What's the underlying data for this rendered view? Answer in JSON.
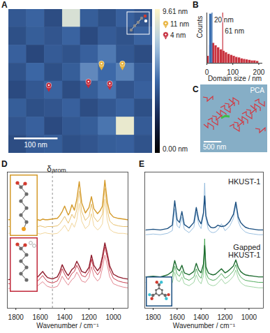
{
  "chart_data": [
    {
      "panel": "A",
      "type": "heatmap",
      "tick_labels": false,
      "xlim": [
        0,
        330
      ],
      "ylim": [
        0,
        320
      ],
      "heights": [
        [
          4.2,
          4.6,
          3.8,
          8.5,
          4.4,
          3.9,
          4.5,
          4.1
        ],
        [
          3.9,
          4.4,
          4.1,
          4.6,
          3.7,
          4.3,
          4.0,
          4.6
        ],
        [
          4.5,
          3.6,
          4.3,
          4.0,
          4.5,
          5.2,
          4.2,
          3.8
        ],
        [
          4.0,
          4.7,
          3.9,
          4.4,
          5.6,
          4.8,
          5.4,
          4.3
        ],
        [
          3.7,
          4.2,
          4.6,
          3.8,
          4.4,
          5.0,
          4.1,
          4.5
        ],
        [
          4.4,
          3.9,
          4.1,
          4.5,
          3.8,
          4.2,
          4.6,
          3.9
        ],
        [
          4.1,
          4.5,
          3.7,
          4.2,
          4.4,
          5.1,
          9.0,
          4.3
        ],
        [
          3.8,
          4.3,
          4.4,
          3.9,
          4.1,
          4.4,
          4.5,
          4.0
        ]
      ],
      "colorbar": {
        "range": [
          0,
          9.61
        ],
        "ticks": [
          {
            "value": 9.61,
            "label": "9.61 nm"
          },
          {
            "value": 0,
            "label": "0.00 nm"
          }
        ]
      },
      "scale_bar": {
        "length": 100,
        "label": "100 nm"
      },
      "markers": [
        {
          "name": "11 nm",
          "color": "#e8b23a",
          "x": [
            213,
            261
          ],
          "y": [
            133,
            133
          ]
        },
        {
          "name": "4 nm",
          "color": "#c42a3a",
          "x": [
            232,
            183,
            92
          ],
          "y": [
            177,
            173,
            181
          ]
        }
      ]
    },
    {
      "panel": "B",
      "type": "histogram",
      "tick_labels": "x",
      "xlabel": "Domain size / nm",
      "ylabel": "Counts",
      "xlim": [
        0,
        215
      ],
      "xticks": [
        0,
        100,
        200
      ],
      "ylim": [
        0,
        100
      ],
      "yticks": [],
      "series": [
        {
          "color": "#c8323e",
          "bins": [
            0,
            10,
            20,
            30,
            40,
            50,
            60,
            70,
            80,
            90,
            100,
            110,
            120,
            130,
            140,
            150,
            160,
            170,
            180,
            190,
            200
          ],
          "values": [
            14,
            36,
            40,
            35,
            31,
            27,
            24,
            21,
            18,
            16,
            14,
            12,
            11,
            9,
            8,
            7,
            6,
            5,
            5,
            4
          ]
        },
        {
          "color": "#3b6fb0",
          "bins": [
            10,
            20
          ],
          "values": [
            98
          ]
        }
      ],
      "annotations": [
        {
          "x": 20,
          "text": "20 nm",
          "color": "#3b6fb0"
        },
        {
          "x": 61,
          "text": "61 nm",
          "color": "#c8323e"
        }
      ]
    },
    {
      "panel": "C",
      "type": "image",
      "tick_labels": false,
      "title": "PCA",
      "xlim": [
        0,
        1900
      ],
      "scale_bar": {
        "length": 500,
        "label": "500 nm"
      }
    },
    {
      "panel": "D",
      "type": "line",
      "tick_labels": "x",
      "xlabel": "Wavenumber / cm⁻¹",
      "xlim": [
        1870,
        880
      ],
      "xticks": [
        1800,
        1600,
        1400,
        1200,
        1000
      ],
      "ylim": [
        0,
        20
      ],
      "yticks": [],
      "x": [
        1860,
        1800,
        1740,
        1680,
        1640,
        1620,
        1600,
        1580,
        1560,
        1540,
        1500,
        1460,
        1440,
        1420,
        1400,
        1380,
        1370,
        1360,
        1340,
        1320,
        1300,
        1280,
        1260,
        1230,
        1200,
        1180,
        1160,
        1130,
        1110,
        1090,
        1070,
        1050,
        1030,
        1000,
        960,
        920,
        885
      ],
      "groups": [
        {
          "series": [
            {
              "color": "#d49a2a",
              "values": [
                13.0,
                13.1,
                12.9,
                13.0,
                13.1,
                13.0,
                12.9,
                13.1,
                13.0,
                13.0,
                13.1,
                13.2,
                13.6,
                14.2,
                15.0,
                14.1,
                13.7,
                14.0,
                15.2,
                14.4,
                16.0,
                18.6,
                15.5,
                14.0,
                14.8,
                16.4,
                14.6,
                13.9,
                14.3,
                15.0,
                18.8,
                15.6,
                14.0,
                13.4,
                13.2,
                13.1,
                13.0
              ]
            },
            {
              "color": "#e4b95e",
              "values": [
                12.0,
                11.9,
                12.1,
                12.0,
                11.9,
                12.0,
                12.1,
                12.0,
                11.9,
                12.0,
                12.0,
                12.1,
                12.4,
                12.9,
                13.5,
                12.8,
                12.5,
                12.9,
                13.8,
                13.2,
                14.5,
                17.2,
                14.2,
                12.9,
                13.5,
                15.3,
                13.4,
                12.7,
                13.1,
                13.8,
                17.6,
                14.4,
                12.8,
                12.3,
                12.1,
                12.0,
                12.0
              ]
            },
            {
              "color": "#efd08e",
              "values": [
                11.0,
                11.1,
                10.9,
                11.0,
                11.1,
                11.0,
                10.9,
                11.0,
                11.1,
                11.0,
                10.9,
                11.0,
                11.3,
                11.7,
                12.2,
                11.6,
                11.3,
                11.6,
                12.5,
                11.9,
                13.0,
                15.4,
                12.8,
                11.7,
                12.2,
                13.9,
                12.1,
                11.5,
                11.8,
                12.4,
                16.0,
                12.9,
                11.6,
                11.2,
                11.0,
                11.0,
                10.9
              ]
            }
          ]
        },
        {
          "series": [
            {
              "color": "#8e1a2b",
              "values": [
                4.2,
                4.3,
                4.1,
                4.3,
                4.4,
                4.6,
                5.0,
                5.4,
                4.9,
                4.5,
                4.3,
                4.6,
                5.3,
                6.4,
                5.6,
                5.0,
                4.8,
                5.1,
                5.7,
                6.0,
                6.9,
                6.2,
                5.4,
                5.2,
                6.0,
                7.8,
                6.3,
                5.5,
                6.0,
                7.6,
                9.6,
                8.0,
                6.2,
                5.0,
                4.6,
                4.4,
                4.3
              ]
            },
            {
              "color": "#c0283a",
              "values": [
                3.6,
                3.5,
                3.7,
                3.6,
                3.8,
                4.0,
                4.4,
                4.8,
                4.3,
                3.9,
                3.7,
                4.0,
                4.7,
                5.8,
                5.0,
                4.4,
                4.2,
                4.5,
                5.1,
                5.4,
                6.3,
                5.6,
                4.8,
                4.6,
                5.4,
                7.2,
                5.7,
                4.9,
                5.4,
                7.0,
                9.0,
                7.4,
                5.6,
                4.4,
                4.0,
                3.8,
                3.7
              ]
            },
            {
              "color": "#e07a86",
              "values": [
                2.9,
                3.0,
                2.9,
                3.0,
                3.1,
                3.3,
                3.6,
                3.9,
                3.5,
                3.2,
                3.0,
                3.2,
                3.8,
                4.7,
                4.1,
                3.6,
                3.4,
                3.7,
                4.2,
                4.5,
                5.3,
                4.7,
                4.0,
                3.8,
                4.5,
                6.1,
                4.7,
                4.0,
                4.4,
                5.9,
                7.8,
                6.3,
                4.6,
                3.6,
                3.3,
                3.1,
                3.0
              ]
            }
          ]
        }
      ],
      "annotations": [
        {
          "x": 1500,
          "text": "δ",
          "sub": "arom.",
          "line_style": "dashed"
        }
      ]
    },
    {
      "panel": "E",
      "type": "line",
      "tick_labels": "x",
      "xlabel": "Wavenumber / cm⁻¹",
      "xlim": [
        1870,
        880
      ],
      "xticks": [
        1800,
        1600,
        1400,
        1200,
        1000
      ],
      "ylim": [
        0,
        20
      ],
      "yticks": [],
      "x": [
        1860,
        1800,
        1740,
        1680,
        1640,
        1620,
        1600,
        1580,
        1560,
        1540,
        1500,
        1460,
        1440,
        1420,
        1400,
        1380,
        1370,
        1360,
        1340,
        1320,
        1300,
        1280,
        1260,
        1230,
        1200,
        1180,
        1160,
        1130,
        1110,
        1090,
        1070,
        1050,
        1030,
        1000,
        960,
        920,
        885
      ],
      "groups": [
        {
          "label": "HKUST-1",
          "series": [
            {
              "color": "#1b4f80",
              "values": [
                11.5,
                11.6,
                11.5,
                11.7,
                12.2,
                15.8,
                13.0,
                12.6,
                14.2,
                12.3,
                11.8,
                12.6,
                14.8,
                13.0,
                12.4,
                14.0,
                16.5,
                13.6,
                12.3,
                11.9,
                11.8,
                11.9,
                12.2,
                12.0,
                12.1,
                12.4,
                12.8,
                13.8,
                15.6,
                13.4,
                12.6,
                12.2,
                11.9,
                11.7,
                11.6,
                11.5,
                11.5
              ]
            },
            {
              "color": "#8fb8db",
              "values": [
                10.8,
                10.9,
                10.8,
                11.0,
                11.4,
                14.6,
                12.1,
                11.8,
                13.4,
                11.6,
                11.1,
                11.9,
                14.2,
                12.3,
                11.7,
                13.8,
                18.4,
                13.2,
                11.6,
                11.2,
                11.1,
                11.2,
                11.5,
                12.4,
                11.4,
                11.7,
                12.1,
                13.2,
                15.2,
                12.8,
                11.9,
                11.5,
                11.2,
                11.0,
                10.9,
                10.8,
                10.8
              ]
            }
          ]
        },
        {
          "label": "Gapped HKUST-1",
          "series": [
            {
              "color": "#1d6b2f",
              "values": [
                4.6,
                4.7,
                4.6,
                4.9,
                5.4,
                7.0,
                5.8,
                5.5,
                6.3,
                5.2,
                4.9,
                5.4,
                6.6,
                5.6,
                5.2,
                6.5,
                9.2,
                6.1,
                5.2,
                5.0,
                4.9,
                5.0,
                5.3,
                5.8,
                5.2,
                5.4,
                5.7,
                6.2,
                7.1,
                6.0,
                5.4,
                5.1,
                4.9,
                4.8,
                4.7,
                4.6,
                4.6
              ]
            },
            {
              "color": "#3ea34c",
              "values": [
                3.8,
                3.9,
                3.8,
                4.1,
                4.6,
                6.2,
                5.0,
                4.7,
                5.5,
                4.4,
                4.1,
                4.6,
                5.8,
                4.8,
                4.4,
                5.7,
                10.2,
                5.3,
                4.4,
                4.2,
                4.1,
                4.2,
                4.5,
                5.1,
                4.4,
                4.6,
                4.9,
                5.5,
                6.4,
                5.2,
                4.6,
                4.3,
                4.1,
                4.0,
                3.9,
                3.8,
                3.8
              ]
            },
            {
              "color": "#94cf99",
              "values": [
                3.0,
                3.1,
                3.0,
                3.3,
                3.7,
                5.3,
                4.1,
                3.9,
                4.6,
                3.6,
                3.3,
                3.8,
                4.9,
                4.0,
                3.6,
                4.8,
                8.6,
                4.5,
                3.6,
                3.4,
                3.3,
                3.4,
                3.7,
                4.3,
                3.6,
                3.8,
                4.1,
                4.7,
                5.6,
                4.4,
                3.8,
                3.5,
                3.3,
                3.2,
                3.1,
                3.0,
                3.0
              ]
            }
          ]
        }
      ]
    }
  ]
}
